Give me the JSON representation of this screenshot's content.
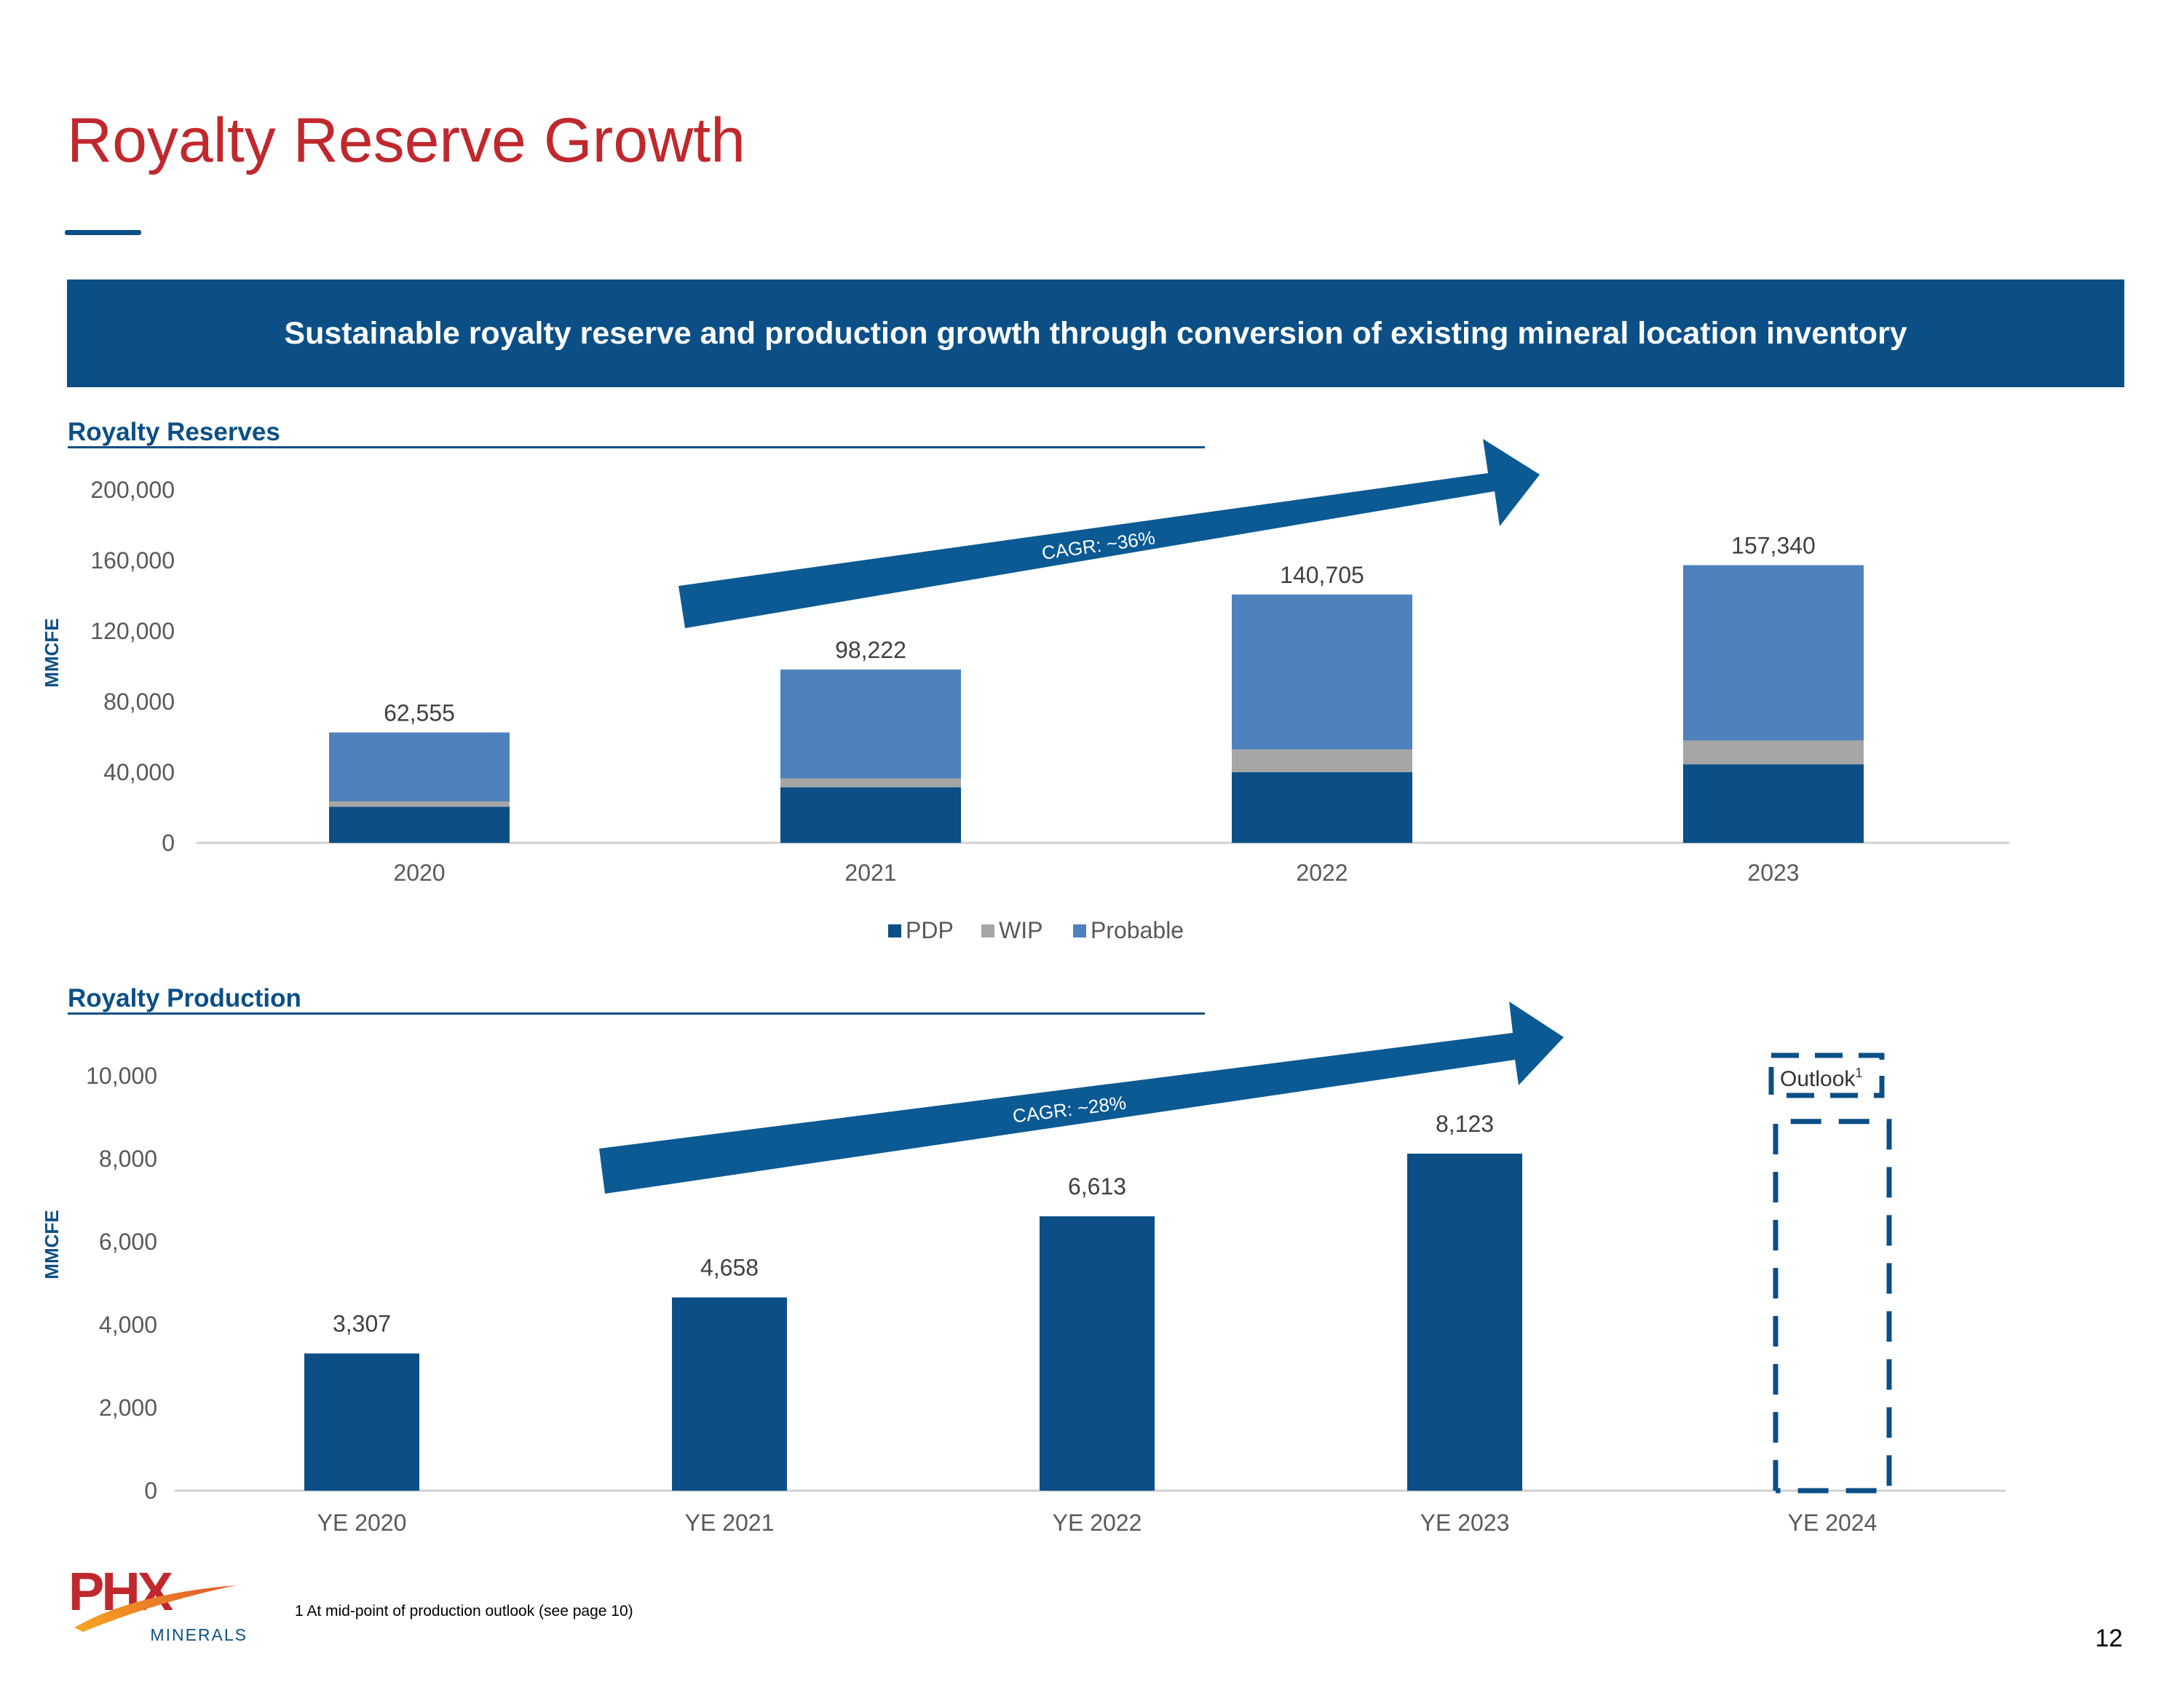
{
  "page": {
    "title": "Royalty Reserve Growth",
    "banner": "Sustainable royalty reserve and production growth through conversion of existing mineral location inventory",
    "footnote": "1 At mid-point of production outlook (see page 10)",
    "page_number": "12"
  },
  "logo": {
    "mark": "PHX",
    "subtext": "MINERALS"
  },
  "colors": {
    "title": "#c0282d",
    "brand": "#0b4f86",
    "pdp": "#0b4f86",
    "wip": "#a6a6a6",
    "probable": "#4f81bd"
  },
  "chart_data": [
    {
      "type": "bar",
      "stacked": true,
      "title": "Royalty Reserves",
      "ylabel": "MMCFE",
      "xlabel": "",
      "ylim": [
        0,
        200000
      ],
      "yticks": [
        0,
        40000,
        80000,
        120000,
        160000,
        200000
      ],
      "ytick_labels": [
        "0",
        "40,000",
        "80,000",
        "120,000",
        "160,000",
        "200,000"
      ],
      "categories": [
        "2020",
        "2021",
        "2022",
        "2023"
      ],
      "series": [
        {
          "name": "PDP",
          "color": "#0b4f86",
          "values": [
            20500,
            31500,
            40000,
            44500
          ]
        },
        {
          "name": "WIP",
          "color": "#a6a6a6",
          "values": [
            3000,
            5000,
            13000,
            13500
          ]
        },
        {
          "name": "Probable",
          "color": "#4f81bd",
          "values": [
            39055,
            61722,
            87705,
            99340
          ]
        }
      ],
      "totals": [
        62555,
        98222,
        140705,
        157340
      ],
      "total_labels": [
        "62,555",
        "98,222",
        "140,705",
        "157,340"
      ],
      "legend": "bottom-center",
      "annotation": "CAGR: ~36%"
    },
    {
      "type": "bar",
      "title": "Royalty Production",
      "ylabel": "MMCFE",
      "xlabel": "",
      "ylim": [
        0,
        10000
      ],
      "yticks": [
        0,
        2000,
        4000,
        6000,
        8000,
        10000
      ],
      "ytick_labels": [
        "0",
        "2,000",
        "4,000",
        "6,000",
        "8,000",
        "10,000"
      ],
      "categories": [
        "YE 2020",
        "YE 2021",
        "YE 2022",
        "YE 2023",
        "YE 2024"
      ],
      "values": [
        3307,
        4658,
        6613,
        8123,
        null
      ],
      "value_labels": [
        "3,307",
        "4,658",
        "6,613",
        "8,123",
        ""
      ],
      "outlook": {
        "category": "YE 2024",
        "label": "Outlook",
        "footnote_marker": "1",
        "style": "dashed",
        "approx_value": 8900
      },
      "annotation": "CAGR: ~28%"
    }
  ]
}
